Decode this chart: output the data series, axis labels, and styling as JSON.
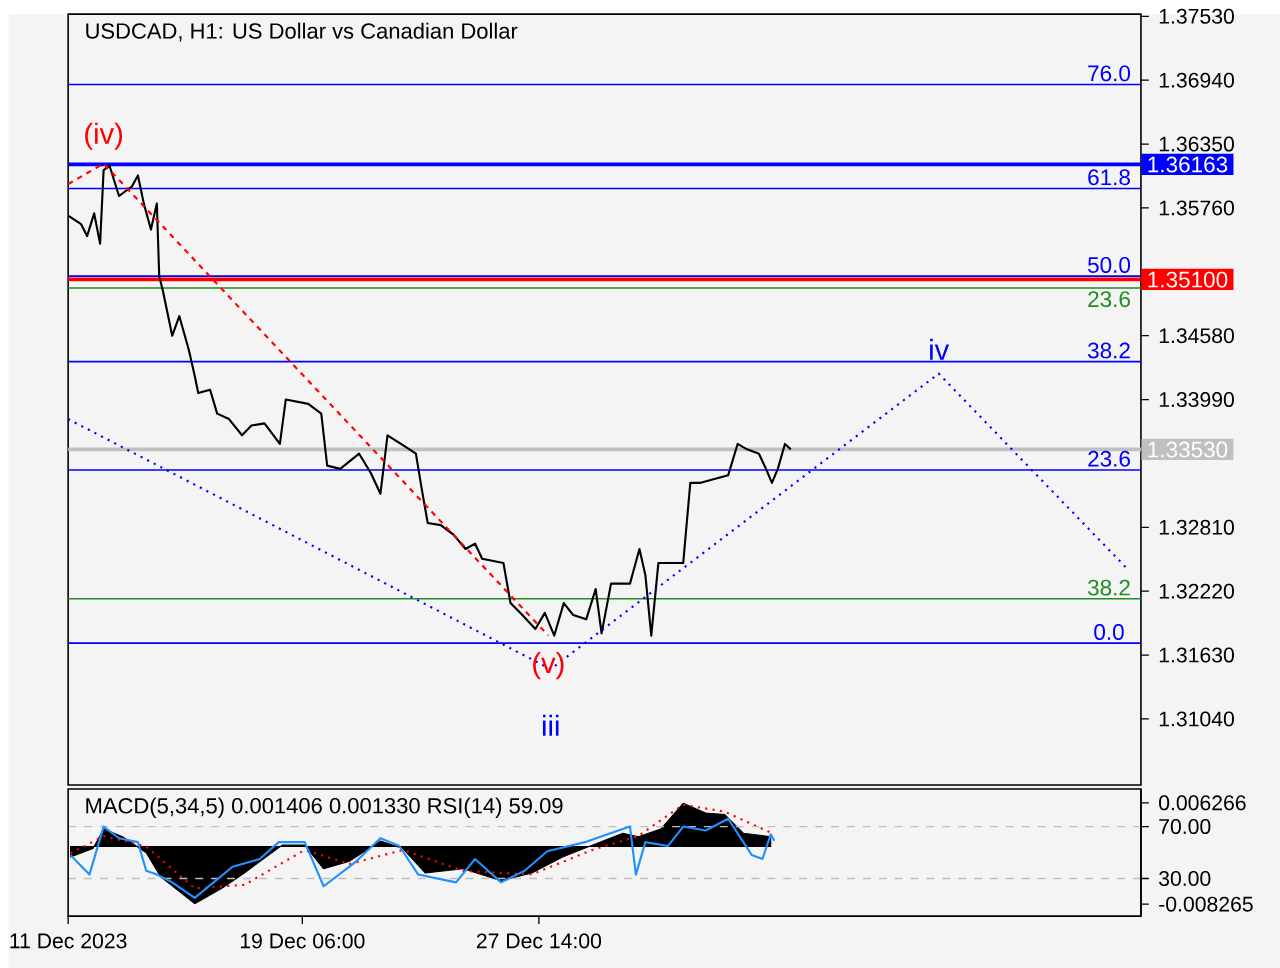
{
  "chart_data": [
    {
      "type": "line",
      "title": "USDCAD, H1:  US Dollar vs Canadian Dollar",
      "xlim": [
        "2023-12-11T00:00",
        "2024-01-17T19:00"
      ],
      "ylim": [
        1.3043,
        1.3755
      ],
      "tick_labels": "y",
      "yticks": [
        {
          "value": 1.3753,
          "label": "1.37530"
        },
        {
          "value": 1.3694,
          "label": "1.36940"
        },
        {
          "value": 1.3635,
          "label": "1.36350"
        },
        {
          "value": 1.3576,
          "label": "1.35760"
        },
        {
          "value": 1.3458,
          "label": "1.34580"
        },
        {
          "value": 1.3399,
          "label": "1.33990"
        },
        {
          "value": 1.3281,
          "label": "1.32810"
        },
        {
          "value": 1.3222,
          "label": "1.32220"
        },
        {
          "value": 1.3163,
          "label": "1.31630"
        },
        {
          "value": 1.3104,
          "label": "1.31040"
        }
      ],
      "series": [
        {
          "color": "#000000",
          "x": [
            "2023-12-11T00:00",
            "2023-12-11T11:00",
            "2023-12-11T16:00",
            "2023-12-11T22:00",
            "2023-12-12T03:00",
            "2023-12-12T06:00",
            "2023-12-12T11:00",
            "2023-12-12T19:00",
            "2023-12-13T06:00",
            "2023-12-13T11:00",
            "2023-12-13T16:00",
            "2023-12-13T22:00",
            "2023-12-14T03:00",
            "2023-12-14T05:00",
            "2023-12-14T08:00",
            "2023-12-14T16:00",
            "2023-12-14T22:00",
            "2023-12-15T06:00",
            "2023-12-15T11:00",
            "2023-12-15T14:00",
            "2023-12-16T00:00",
            "2023-12-16T06:00",
            "2023-12-16T16:00",
            "2023-12-17T03:00",
            "2023-12-17T11:00",
            "2023-12-17T22:00",
            "2023-12-18T11:00",
            "2023-12-18T16:00",
            "2023-12-19T11:00",
            "2023-12-19T22:00",
            "2023-12-20T03:00",
            "2023-12-20T14:00",
            "2023-12-21T06:00",
            "2023-12-21T16:00",
            "2023-12-22T00:00",
            "2023-12-22T06:00",
            "2023-12-22T19:00",
            "2023-12-23T06:00",
            "2023-12-23T11:00",
            "2023-12-23T16:00",
            "2023-12-24T03:00",
            "2023-12-24T14:00",
            "2023-12-25T00:00",
            "2023-12-25T08:00",
            "2023-12-25T14:00",
            "2023-12-26T08:00",
            "2023-12-26T14:00",
            "2023-12-27T00:00",
            "2023-12-27T11:00",
            "2023-12-27T19:00",
            "2023-12-28T03:00",
            "2023-12-28T11:00",
            "2023-12-28T19:00",
            "2023-12-29T06:00",
            "2023-12-29T14:00",
            "2023-12-29T19:00",
            "2023-12-30T03:00",
            "2023-12-30T19:00",
            "2023-12-31T03:00",
            "2023-12-31T08:00",
            "2023-12-31T13:00",
            "2023-12-31T19:00",
            "2024-01-01T03:00",
            "2024-01-01T16:00",
            "2024-01-01T22:00",
            "2024-01-02T06:00",
            "2024-01-02T16:00",
            "2024-01-03T06:00",
            "2024-01-03T14:00",
            "2024-01-03T22:00",
            "2024-01-04T08:00",
            "2024-01-04T14:00",
            "2024-01-04T19:00",
            "2024-01-05T00:00",
            "2024-01-05T06:00",
            "2024-01-05T11:00"
          ],
          "values": [
            1.3569,
            1.3561,
            1.355,
            1.3571,
            1.3543,
            1.3611,
            1.3615,
            1.3587,
            1.3596,
            1.3606,
            1.358,
            1.3556,
            1.358,
            1.3513,
            1.35,
            1.3458,
            1.3476,
            1.3445,
            1.3421,
            1.3405,
            1.3408,
            1.3386,
            1.3381,
            1.3366,
            1.3375,
            1.3377,
            1.3358,
            1.3399,
            1.3395,
            1.3386,
            1.3338,
            1.3335,
            1.3349,
            1.3331,
            1.3312,
            1.3366,
            1.3357,
            1.3349,
            1.3316,
            1.3285,
            1.3283,
            1.3274,
            1.3261,
            1.3266,
            1.3252,
            1.3248,
            1.3211,
            1.32,
            1.3187,
            1.3202,
            1.3181,
            1.3211,
            1.32,
            1.3196,
            1.3224,
            1.3183,
            1.3229,
            1.3229,
            1.3261,
            1.3237,
            1.3181,
            1.3248,
            1.3248,
            1.3248,
            1.3322,
            1.3322,
            1.3325,
            1.3329,
            1.3358,
            1.3353,
            1.3349,
            1.3335,
            1.3322,
            1.3335,
            1.3358,
            1.3353
          ]
        },
        {
          "color": "#ff0000",
          "line_style": "dashed",
          "x": [
            "2023-12-11T00:00",
            "2023-12-12T06:00",
            "2023-12-27T22:00"
          ],
          "values": [
            1.3598,
            1.3617,
            1.3181
          ]
        },
        {
          "color": "#0000ff",
          "line_style": "dotted",
          "x": [
            "2023-12-11T00:00",
            "2023-12-28T00:00",
            "2024-01-10T16:00",
            "2024-01-17T08:00"
          ],
          "values": [
            1.3381,
            1.315,
            1.3423,
            1.3242
          ]
        }
      ],
      "ref_lines": [
        {
          "axis": "y",
          "value": 1.369,
          "color": "#0000ff"
        },
        {
          "axis": "y",
          "value": 1.36163,
          "label": "1.36163",
          "color": "#0000ff"
        },
        {
          "axis": "y",
          "value": 1.3594,
          "color": "#0000ff"
        },
        {
          "axis": "y",
          "value": 1.3513,
          "color": "#0000ff"
        },
        {
          "axis": "y",
          "value": 1.351,
          "label": "1.35100",
          "color": "#ff0000"
        },
        {
          "axis": "y",
          "value": 1.3502,
          "color": "#228b22"
        },
        {
          "axis": "y",
          "value": 1.3434,
          "color": "#0000ff"
        },
        {
          "axis": "y",
          "value": 1.3353,
          "label": "1.33530",
          "color": "#c0c0c0"
        },
        {
          "axis": "y",
          "value": 1.3334,
          "color": "#0000ff"
        },
        {
          "axis": "y",
          "value": 1.3215,
          "color": "#228b22"
        },
        {
          "axis": "y",
          "value": 1.3174,
          "color": "#0000ff"
        }
      ],
      "annotations": [
        {
          "text": "76.0",
          "x": "2024-01-16T16:00",
          "y": 1.369
        },
        {
          "text": "61.8",
          "x": "2024-01-16T16:00",
          "y": 1.3594
        },
        {
          "text": "50.0",
          "x": "2024-01-16T16:00",
          "y": 1.3513
        },
        {
          "text": "23.6",
          "x": "2024-01-16T16:00",
          "y": 1.3502
        },
        {
          "text": "38.2",
          "x": "2024-01-16T16:00",
          "y": 1.3434
        },
        {
          "text": "23.6",
          "x": "2024-01-16T16:00",
          "y": 1.3334
        },
        {
          "text": "38.2",
          "x": "2024-01-16T16:00",
          "y": 1.3215
        },
        {
          "text": "0.0",
          "x": "2024-01-16T16:00",
          "y": 1.3174
        },
        {
          "text": "(iv)",
          "x": "2023-12-12T06:00",
          "y": 1.3617
        },
        {
          "text": "(v)",
          "x": "2023-12-27T22:00",
          "y": 1.3181
        },
        {
          "text": "iii",
          "x": "2023-12-28T00:00",
          "y": 1.315
        },
        {
          "text": "iv",
          "x": "2024-01-10T16:00",
          "y": 1.3423
        }
      ]
    },
    {
      "type": "line",
      "title": "MACD(5,34,5) 0.001406 0.001330 RSI(14) 59.09",
      "xlim": [
        "2023-12-11T00:00",
        "2024-01-17T19:00"
      ],
      "ylim": [
        1,
        99
      ],
      "grid": "y",
      "xticks": [
        {
          "value": "2023-12-11T00:00",
          "label": "11 Dec 2023"
        },
        {
          "value": "2023-12-19T06:00",
          "label": "19 Dec 06:00"
        },
        {
          "value": "2023-12-27T14:00",
          "label": "27 Dec 14:00"
        }
      ],
      "yticks": [
        {
          "value": 70,
          "label": "70.00"
        },
        {
          "value": 30,
          "label": "30.00"
        }
      ],
      "y2lim": [
        -0.00998,
        0.00826
      ],
      "y2ticks": [
        0.006266,
        -0.008265
      ],
      "series": [
        {
          "type": "area",
          "axis": "y2",
          "color": "#000000",
          "x": [
            "2023-12-11T02:00",
            "2023-12-11T21:00",
            "2023-12-12T06:00",
            "2023-12-12T22:00",
            "2023-12-13T18:00",
            "2023-12-14T06:00",
            "2023-12-15T11:00",
            "2023-12-16T10:00",
            "2023-12-17T05:00",
            "2023-12-18T13:00",
            "2023-12-19T08:00",
            "2023-12-20T00:00",
            "2023-12-20T22:00",
            "2023-12-22T00:00",
            "2023-12-22T19:00",
            "2023-12-23T14:00",
            "2023-12-24T22:00",
            "2023-12-26T06:00",
            "2023-12-27T08:00",
            "2023-12-28T10:00",
            "2023-12-29T11:00",
            "2023-12-30T13:00",
            "2023-12-31T02:00",
            "2023-12-31T21:00",
            "2024-01-01T16:00",
            "2024-01-02T11:00",
            "2024-01-03T03:00",
            "2024-01-03T19:00",
            "2024-01-04T18:00"
          ],
          "values": [
            -0.0015,
            -0.0003,
            0.0025,
            0.0014,
            -0.0009,
            -0.0043,
            -0.0082,
            -0.006,
            -0.0038,
            0.0002,
            0.0002,
            -0.0032,
            -0.0021,
            0.0008,
            -0.0003,
            -0.0038,
            -0.0032,
            -0.0049,
            -0.0038,
            -0.0015,
            0.0002,
            0.0019,
            0.0014,
            0.0025,
            0.0062,
            0.0048,
            0.0046,
            0.0019,
            0.0014
          ]
        },
        {
          "type": "line",
          "axis": "y2",
          "color": "#ff0000",
          "line_style": "dotted",
          "x": [
            "2023-12-11T02:00",
            "2023-12-12T06:00",
            "2023-12-13T18:00",
            "2023-12-15T11:00",
            "2023-12-17T05:00",
            "2023-12-19T08:00",
            "2023-12-20T22:00",
            "2023-12-22T19:00",
            "2023-12-24T22:00",
            "2023-12-27T08:00",
            "2023-12-29T11:00",
            "2023-12-31T02:00",
            "2024-01-01T16:00",
            "2024-01-03T03:00",
            "2024-01-04T18:00"
          ],
          "values": [
            -0.001,
            0.0015,
            0.0,
            -0.006,
            -0.0055,
            -0.0005,
            -0.0025,
            -0.0005,
            -0.0035,
            -0.004,
            -0.0005,
            0.0015,
            0.006,
            0.005,
            0.002
          ]
        },
        {
          "type": "line",
          "color": "#1e90ff",
          "x": [
            "2023-12-11T02:00",
            "2023-12-11T18:00",
            "2023-12-12T06:00",
            "2023-12-12T19:00",
            "2023-12-13T11:00",
            "2023-12-13T18:00",
            "2023-12-14T03:00",
            "2023-12-14T16:00",
            "2023-12-15T11:00",
            "2023-12-16T03:00",
            "2023-12-16T19:00",
            "2023-12-17T18:00",
            "2023-12-18T10:00",
            "2023-12-19T08:00",
            "2023-12-20T00:00",
            "2023-12-21T02:00",
            "2023-12-22T00:00",
            "2023-12-22T16:00",
            "2023-12-23T08:00",
            "2023-12-24T16:00",
            "2023-12-25T08:00",
            "2023-12-26T06:00",
            "2023-12-27T02:00",
            "2023-12-27T21:00",
            "2023-12-29T05:00",
            "2023-12-30T00:00",
            "2023-12-30T19:00",
            "2023-12-31T00:00",
            "2023-12-31T08:00",
            "2024-01-01T03:00",
            "2024-01-01T16:00",
            "2024-01-02T11:00",
            "2024-01-03T06:00",
            "2024-01-04T02:00",
            "2024-01-04T11:00",
            "2024-01-04T18:00",
            "2024-01-04T21:00"
          ],
          "values": [
            48,
            33,
            70,
            61,
            58,
            36,
            33,
            27,
            15,
            27,
            39,
            45,
            58,
            58,
            24,
            42,
            61,
            55,
            33,
            27,
            45,
            27,
            36,
            51,
            58,
            64,
            70,
            33,
            58,
            55,
            70,
            67,
            76,
            48,
            45,
            64,
            59
          ]
        }
      ]
    }
  ]
}
